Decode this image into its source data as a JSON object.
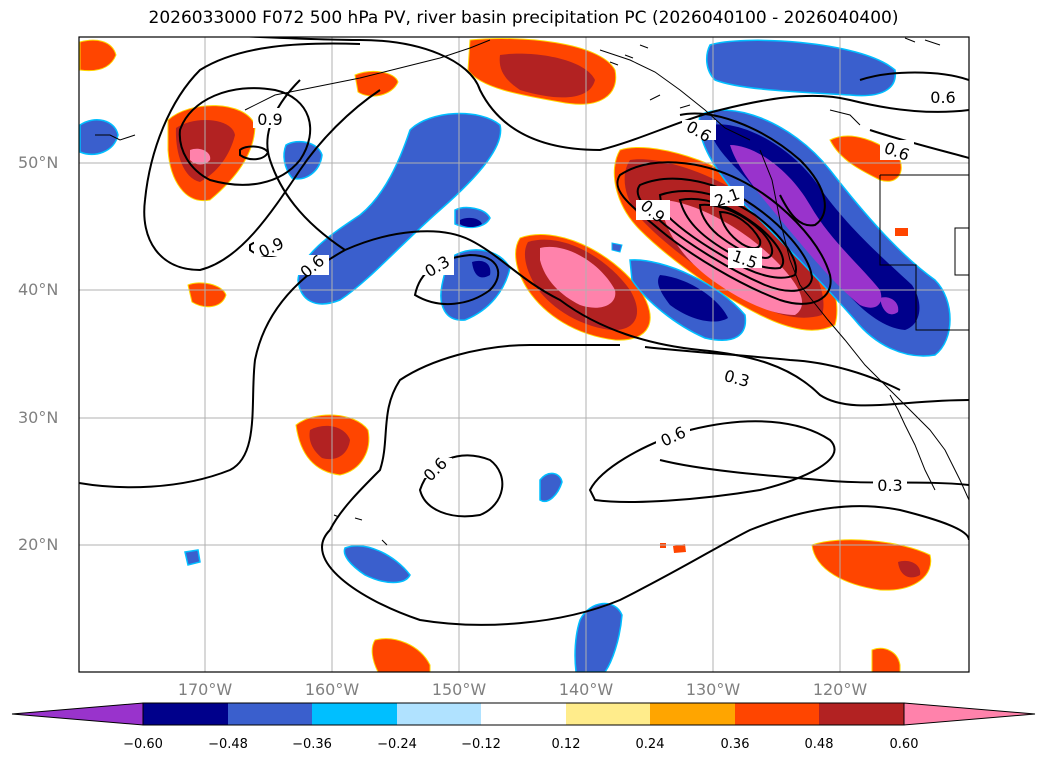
{
  "title": "2026033000 F072 500 hPa PV, river basin precipitation PC (2026040100 - 2026040400)",
  "lat_labels": [
    "50°N",
    "40°N",
    "30°N",
    "20°N"
  ],
  "lon_labels": [
    "170°W",
    "160°W",
    "150°W",
    "140°W",
    "130°W",
    "120°W"
  ],
  "contour_labels": [
    "0.9",
    "0.9",
    "0.6",
    "0.3",
    "0.6",
    "0.9",
    "2.1",
    "1.5",
    "0.6",
    "0.6",
    "0.3",
    "0.6",
    "0.6",
    "0.3"
  ],
  "colorbar": {
    "colors": [
      "#9933cc",
      "#00008b",
      "#3a5fcd",
      "#00bfff",
      "#b0e2ff",
      "#ffffff",
      "#ffec8b",
      "#ffa500",
      "#ff4500",
      "#b22222",
      "#ff82ab"
    ],
    "ticks": [
      "−0.60",
      "−0.48",
      "−0.36",
      "−0.24",
      "−0.12",
      "0.12",
      "0.24",
      "0.36",
      "0.48",
      "0.60"
    ]
  }
}
